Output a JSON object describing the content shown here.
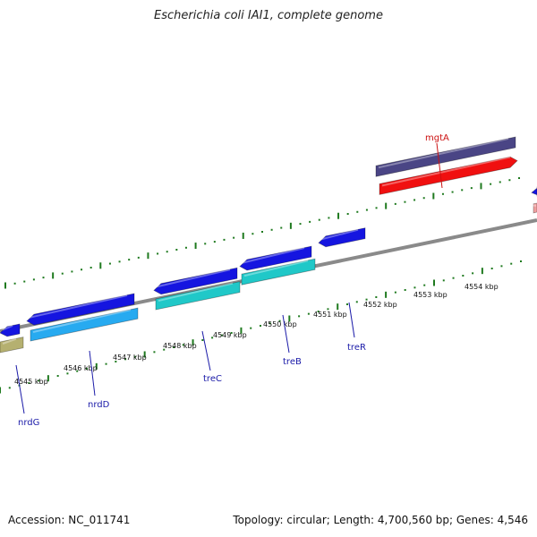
{
  "title": "Escherichia coli IAI1, complete genome",
  "footer": {
    "accession": "Accession: NC_011741",
    "topology": "Topology: circular; Length: 4,700,560 bp; Genes: 4,546"
  },
  "colors": {
    "backbone": "#8a8a8a",
    "tick": "#1f7a1f",
    "label_blue": "#1a1aa8",
    "label_red": "#cc1111",
    "cds_blue": "#1515e0",
    "cds_cyan": "#20c8c8",
    "cds_lightblue": "#27aaf0",
    "cds_olive": "#b5b070",
    "cds_purple": "#4a4585",
    "cds_red": "#f01010",
    "cds_pink": "#f0a0a0"
  },
  "tick_labels": [
    "4545 kbp",
    "4546 kbp",
    "4547 kbp",
    "4548 kbp",
    "4549 kbp",
    "4550 kbp",
    "4551 kbp",
    "4552 kbp",
    "4553 kbp",
    "4554 kbp"
  ],
  "gene_labels": [
    {
      "name": "nrdG",
      "color": "label_blue"
    },
    {
      "name": "nrdD",
      "color": "label_blue"
    },
    {
      "name": "treC",
      "color": "label_blue"
    },
    {
      "name": "treB",
      "color": "label_blue"
    },
    {
      "name": "treR",
      "color": "label_blue"
    },
    {
      "name": "mgtA",
      "color": "label_red"
    }
  ]
}
